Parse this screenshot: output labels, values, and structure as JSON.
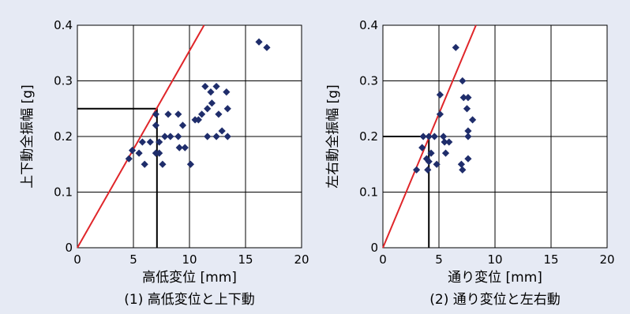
{
  "chart_data": [
    {
      "type": "scatter",
      "caption": "(1) 高低変位と上下動",
      "xlabel": "高低変位 [mm]",
      "ylabel": "上下動全振幅 [g]",
      "xlim": [
        0,
        20
      ],
      "ylim": [
        0,
        0.4
      ],
      "x_ticks": [
        "0",
        "5",
        "10",
        "15",
        "20"
      ],
      "y_ticks": [
        "0",
        "0.1",
        "0.2",
        "0.3",
        "0.4"
      ],
      "grid": true,
      "marker_color": "#1f2d6b",
      "line_color": "#e0262a",
      "points": [
        [
          4.6,
          0.16
        ],
        [
          4.9,
          0.175
        ],
        [
          5.5,
          0.17
        ],
        [
          5.8,
          0.19
        ],
        [
          6.0,
          0.15
        ],
        [
          6.5,
          0.19
        ],
        [
          7.0,
          0.24
        ],
        [
          7.0,
          0.22
        ],
        [
          7.0,
          0.17
        ],
        [
          7.3,
          0.19
        ],
        [
          7.3,
          0.17
        ],
        [
          7.6,
          0.15
        ],
        [
          7.8,
          0.2
        ],
        [
          8.1,
          0.24
        ],
        [
          8.3,
          0.2
        ],
        [
          9.0,
          0.24
        ],
        [
          9.0,
          0.2
        ],
        [
          9.1,
          0.18
        ],
        [
          9.4,
          0.22
        ],
        [
          9.6,
          0.18
        ],
        [
          10.1,
          0.15
        ],
        [
          10.5,
          0.23
        ],
        [
          10.8,
          0.23
        ],
        [
          11.1,
          0.24
        ],
        [
          11.4,
          0.29
        ],
        [
          11.6,
          0.2
        ],
        [
          11.6,
          0.25
        ],
        [
          11.9,
          0.28
        ],
        [
          12.0,
          0.26
        ],
        [
          12.4,
          0.29
        ],
        [
          12.4,
          0.2
        ],
        [
          12.6,
          0.24
        ],
        [
          12.9,
          0.21
        ],
        [
          13.3,
          0.28
        ],
        [
          13.4,
          0.25
        ],
        [
          13.4,
          0.2
        ],
        [
          16.2,
          0.37
        ],
        [
          16.9,
          0.36
        ]
      ],
      "ref_line": [
        [
          0,
          0
        ],
        [
          11.3,
          0.4
        ]
      ],
      "guide": [
        [
          0,
          0.25
        ],
        [
          7.1,
          0.25
        ],
        [
          7.1,
          0
        ]
      ]
    },
    {
      "type": "scatter",
      "caption": "(2) 通り変位と左右動",
      "xlabel": "通り変位 [mm]",
      "ylabel": "左右動全振幅 [g]",
      "xlim": [
        0,
        20
      ],
      "ylim": [
        0,
        0.4
      ],
      "x_ticks": [
        "0",
        "5",
        "10",
        "15",
        "20"
      ],
      "y_ticks": [
        "0",
        "0.1",
        "0.2",
        "0.3",
        "0.4"
      ],
      "grid": true,
      "marker_color": "#1f2d6b",
      "line_color": "#e0262a",
      "points": [
        [
          3.0,
          0.14
        ],
        [
          3.5,
          0.18
        ],
        [
          3.6,
          0.2
        ],
        [
          3.9,
          0.16
        ],
        [
          4.0,
          0.14
        ],
        [
          4.1,
          0.155
        ],
        [
          4.1,
          0.2
        ],
        [
          4.3,
          0.17
        ],
        [
          4.6,
          0.2
        ],
        [
          4.8,
          0.15
        ],
        [
          5.1,
          0.24
        ],
        [
          5.1,
          0.275
        ],
        [
          5.4,
          0.2
        ],
        [
          5.5,
          0.19
        ],
        [
          5.6,
          0.17
        ],
        [
          5.9,
          0.19
        ],
        [
          6.5,
          0.36
        ],
        [
          7.0,
          0.15
        ],
        [
          7.1,
          0.3
        ],
        [
          7.1,
          0.14
        ],
        [
          7.2,
          0.27
        ],
        [
          7.5,
          0.25
        ],
        [
          7.6,
          0.27
        ],
        [
          7.6,
          0.21
        ],
        [
          7.6,
          0.2
        ],
        [
          7.6,
          0.16
        ],
        [
          8.0,
          0.23
        ]
      ],
      "ref_line": [
        [
          0,
          0
        ],
        [
          8.3,
          0.4
        ]
      ],
      "guide": [
        [
          0,
          0.2
        ],
        [
          4.1,
          0.2
        ],
        [
          4.1,
          0
        ]
      ]
    }
  ]
}
